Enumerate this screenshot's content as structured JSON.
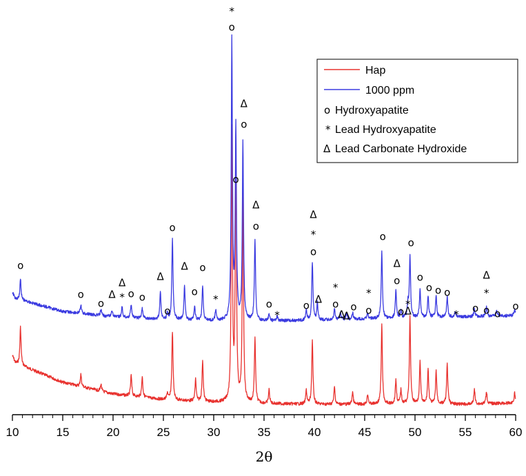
{
  "chart_data": {
    "type": "line",
    "title": "",
    "xlabel": "2θ",
    "ylabel": "",
    "xlim": [
      10,
      60
    ],
    "x_ticks": [
      "10",
      "15",
      "20",
      "25",
      "30",
      "35",
      "40",
      "45",
      "50",
      "55",
      "60"
    ],
    "grid": false,
    "legend_position": "top-right",
    "legend": [
      {
        "kind": "line",
        "color": "#e8322f",
        "label": "Hap"
      },
      {
        "kind": "line",
        "color": "#3b3be0",
        "label": "1000 ppm"
      },
      {
        "kind": "symbol",
        "symbol": "o",
        "label": "Hydroxyapatite"
      },
      {
        "kind": "symbol",
        "symbol": "*",
        "label": "Lead Hydroxyapatite"
      },
      {
        "kind": "symbol",
        "symbol": "Δ",
        "label": "Lead Carbonate Hydroxide"
      }
    ],
    "series": [
      {
        "name": "Hap",
        "color": "#e8322f",
        "baseline": [
          [
            10,
            525
          ],
          [
            15,
            555
          ],
          [
            20,
            572
          ],
          [
            25,
            580
          ],
          [
            30,
            584
          ],
          [
            35,
            586
          ],
          [
            40,
            587
          ],
          [
            45,
            587
          ],
          [
            50,
            586
          ],
          [
            55,
            587
          ],
          [
            60,
            585
          ]
        ],
        "peaks": [
          [
            10.8,
            55
          ],
          [
            16.8,
            18
          ],
          [
            18.8,
            10
          ],
          [
            21.8,
            30
          ],
          [
            22.9,
            30
          ],
          [
            25.4,
            10
          ],
          [
            25.9,
            100
          ],
          [
            28.2,
            32
          ],
          [
            28.9,
            60
          ],
          [
            31.8,
            390
          ],
          [
            32.2,
            365
          ],
          [
            32.9,
            310
          ],
          [
            34.1,
            95
          ],
          [
            35.5,
            20
          ],
          [
            39.2,
            20
          ],
          [
            39.8,
            93
          ],
          [
            42.0,
            25
          ],
          [
            43.8,
            18
          ],
          [
            45.3,
            15
          ],
          [
            46.7,
            115
          ],
          [
            48.1,
            35
          ],
          [
            48.6,
            20
          ],
          [
            49.5,
            126
          ],
          [
            50.5,
            60
          ],
          [
            51.3,
            50
          ],
          [
            52.1,
            48
          ],
          [
            53.2,
            58
          ],
          [
            55.9,
            22
          ],
          [
            57.1,
            18
          ],
          [
            59.9,
            15
          ]
        ]
      },
      {
        "name": "1000 ppm",
        "color": "#3b3be0",
        "baseline": [
          [
            10,
            432
          ],
          [
            15,
            452
          ],
          [
            20,
            460
          ],
          [
            25,
            464
          ],
          [
            30,
            466
          ],
          [
            35,
            466
          ],
          [
            40,
            465
          ],
          [
            45,
            463
          ],
          [
            50,
            461
          ],
          [
            55,
            460
          ],
          [
            60,
            458
          ]
        ],
        "peaks": [
          [
            10.8,
            30
          ],
          [
            16.8,
            12
          ],
          [
            18.8,
            8
          ],
          [
            19.9,
            10
          ],
          [
            20.9,
            15
          ],
          [
            21.8,
            20
          ],
          [
            22.9,
            15
          ],
          [
            24.7,
            40
          ],
          [
            25.4,
            10
          ],
          [
            25.9,
            120
          ],
          [
            27.1,
            50
          ],
          [
            28.1,
            20
          ],
          [
            28.9,
            50
          ],
          [
            30.2,
            15
          ],
          [
            31.8,
            405
          ],
          [
            32.2,
            280
          ],
          [
            32.9,
            260
          ],
          [
            34.1,
            118
          ],
          [
            35.5,
            10
          ],
          [
            36.3,
            6
          ],
          [
            39.2,
            15
          ],
          [
            39.8,
            85
          ],
          [
            40.3,
            25
          ],
          [
            42.0,
            15
          ],
          [
            42.6,
            10
          ],
          [
            43.2,
            8
          ],
          [
            43.8,
            10
          ],
          [
            45.3,
            8
          ],
          [
            46.7,
            97
          ],
          [
            48.1,
            40
          ],
          [
            48.6,
            10
          ],
          [
            49.3,
            20
          ],
          [
            49.5,
            90
          ],
          [
            50.5,
            40
          ],
          [
            51.3,
            30
          ],
          [
            52.1,
            30
          ],
          [
            53.2,
            30
          ],
          [
            54.0,
            8
          ],
          [
            55.9,
            12
          ],
          [
            57.1,
            15
          ],
          [
            58.1,
            8
          ],
          [
            59.9,
            10
          ]
        ]
      }
    ],
    "peak_markers": [
      {
        "x": 10.8,
        "symbol": "o",
        "y": 386
      },
      {
        "x": 16.8,
        "symbol": "o",
        "y": 428
      },
      {
        "x": 18.8,
        "symbol": "o",
        "y": 441
      },
      {
        "x": 19.9,
        "symbol": "Δ",
        "y": 428
      },
      {
        "x": 20.9,
        "symbol": "Δ",
        "y": 411
      },
      {
        "x": 20.9,
        "symbol": "*",
        "y": 432
      },
      {
        "x": 21.8,
        "symbol": "o",
        "y": 427
      },
      {
        "x": 22.9,
        "symbol": "o",
        "y": 432
      },
      {
        "x": 24.7,
        "symbol": "Δ",
        "y": 402
      },
      {
        "x": 25.4,
        "symbol": "o",
        "y": 452
      },
      {
        "x": 25.9,
        "symbol": "o",
        "y": 331
      },
      {
        "x": 27.1,
        "symbol": "Δ",
        "y": 387
      },
      {
        "x": 28.1,
        "symbol": "o",
        "y": 424
      },
      {
        "x": 28.9,
        "symbol": "o",
        "y": 389
      },
      {
        "x": 30.2,
        "symbol": "*",
        "y": 435
      },
      {
        "x": 31.8,
        "symbol": "*",
        "y": 17
      },
      {
        "x": 31.8,
        "symbol": "o",
        "y": 40
      },
      {
        "x": 32.2,
        "symbol": "o",
        "y": 261
      },
      {
        "x": 33.0,
        "symbol": "Δ",
        "y": 151
      },
      {
        "x": 33.0,
        "symbol": "o",
        "y": 181
      },
      {
        "x": 34.2,
        "symbol": "Δ",
        "y": 298
      },
      {
        "x": 34.2,
        "symbol": "o",
        "y": 329
      },
      {
        "x": 35.5,
        "symbol": "o",
        "y": 442
      },
      {
        "x": 36.3,
        "symbol": "*",
        "y": 458
      },
      {
        "x": 39.2,
        "symbol": "o",
        "y": 444
      },
      {
        "x": 39.9,
        "symbol": "Δ",
        "y": 312
      },
      {
        "x": 39.9,
        "symbol": "*",
        "y": 341
      },
      {
        "x": 39.9,
        "symbol": "o",
        "y": 366
      },
      {
        "x": 40.4,
        "symbol": "Δ",
        "y": 435
      },
      {
        "x": 42.1,
        "symbol": "*",
        "y": 418
      },
      {
        "x": 42.1,
        "symbol": "o",
        "y": 442
      },
      {
        "x": 42.7,
        "symbol": "Δ",
        "y": 457
      },
      {
        "x": 43.2,
        "symbol": "Δ",
        "y": 459
      },
      {
        "x": 43.9,
        "symbol": "o",
        "y": 446
      },
      {
        "x": 45.4,
        "symbol": "*",
        "y": 426
      },
      {
        "x": 45.4,
        "symbol": "o",
        "y": 451
      },
      {
        "x": 46.8,
        "symbol": "o",
        "y": 344
      },
      {
        "x": 48.2,
        "symbol": "Δ",
        "y": 383
      },
      {
        "x": 48.2,
        "symbol": "o",
        "y": 408
      },
      {
        "x": 48.6,
        "symbol": "o",
        "y": 453
      },
      {
        "x": 49.3,
        "symbol": "Δ",
        "y": 452
      },
      {
        "x": 49.3,
        "symbol": "*",
        "y": 442
      },
      {
        "x": 49.6,
        "symbol": "o",
        "y": 353
      },
      {
        "x": 50.5,
        "symbol": "o",
        "y": 403
      },
      {
        "x": 51.4,
        "symbol": "o",
        "y": 418
      },
      {
        "x": 52.3,
        "symbol": "o",
        "y": 422
      },
      {
        "x": 53.2,
        "symbol": "o",
        "y": 425
      },
      {
        "x": 54.1,
        "symbol": "*",
        "y": 457
      },
      {
        "x": 56.0,
        "symbol": "o",
        "y": 448
      },
      {
        "x": 57.1,
        "symbol": "Δ",
        "y": 400
      },
      {
        "x": 57.1,
        "symbol": "*",
        "y": 426
      },
      {
        "x": 57.1,
        "symbol": "o",
        "y": 451
      },
      {
        "x": 58.2,
        "symbol": "o",
        "y": 456
      },
      {
        "x": 60.0,
        "symbol": "o",
        "y": 445
      }
    ]
  }
}
